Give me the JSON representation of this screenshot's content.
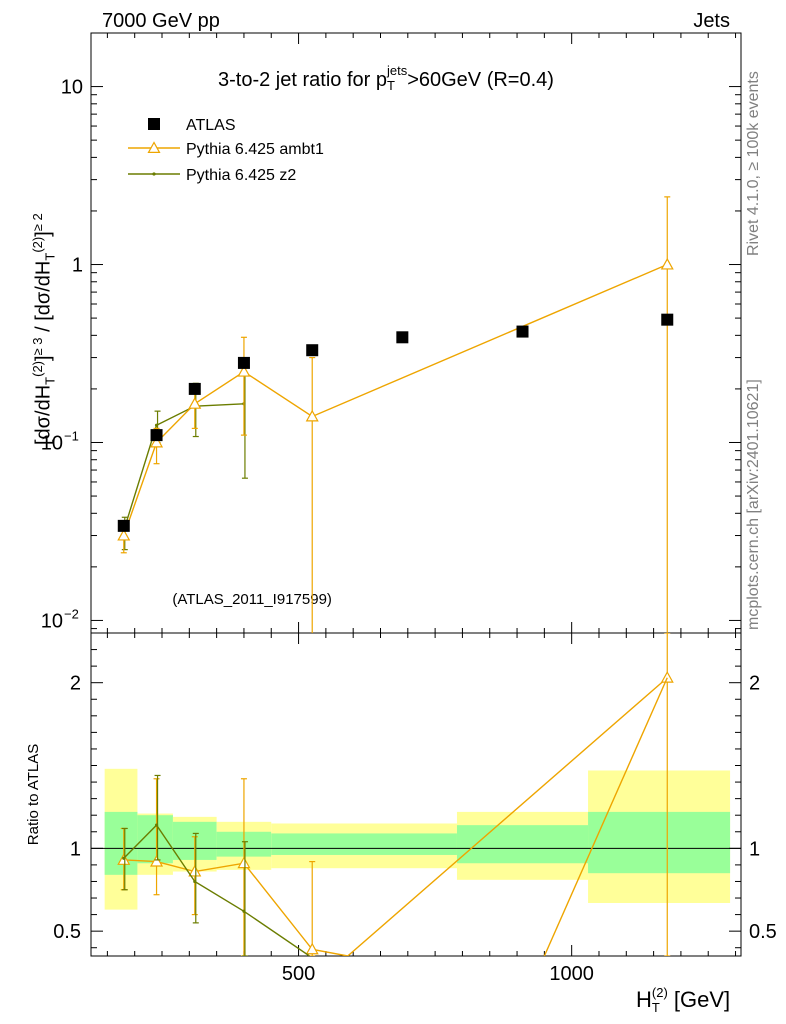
{
  "header": {
    "left": "7000 GeV pp",
    "right": "Jets"
  },
  "side_labels": {
    "rivet": "Rivet 4.1.0, ≥ 100k events",
    "mcplots": "mcplots.cern.ch [arXiv:2401.10621]"
  },
  "chart_data": [
    {
      "type": "scatter",
      "panel": "main",
      "title": {
        "text": "3-to-2 jet ratio for p",
        "sup": "jets",
        "sub": "T",
        "rest": ">60GeV (R=0.4)"
      },
      "ylabel": {
        "p1": "[dσ/dH",
        "s1sub": "T",
        "s1sup": "(2)",
        "e1": "]",
        "e1sup": "≥ 3",
        "p2": " / [dσ/dH",
        "s2sub": "T",
        "s2sup": "(2)",
        "e2": "]",
        "e2sup": "≥ 2"
      },
      "yscale": "log",
      "ylim": [
        0.0085,
        20
      ],
      "xlim": [
        120,
        1310
      ],
      "y_ticks": [
        {
          "value": 10,
          "label": "10"
        },
        {
          "value": 1,
          "label": "1"
        },
        {
          "value": 0.1,
          "label": "10",
          "sup": "−1"
        },
        {
          "value": 0.01,
          "label": "10",
          "sup": "−2"
        }
      ],
      "watermark": "(ATLAS_2011_I917599)",
      "legend_position": "top-left",
      "series": [
        {
          "name": "ATLAS",
          "marker": "square",
          "color": "#000000",
          "x": [
            180,
            240,
            310,
            400,
            525,
            690,
            910,
            1175
          ],
          "y": [
            0.034,
            0.11,
            0.2,
            0.28,
            0.33,
            0.39,
            0.42,
            0.49
          ]
        },
        {
          "name": "Pythia 6.425 ambt1",
          "marker": "triangle",
          "color": "#EEA500",
          "x": [
            180,
            240,
            310,
            400,
            525,
            1175
          ],
          "y": [
            0.03,
            0.1,
            0.165,
            0.25,
            0.14,
            1.0
          ],
          "err_low": [
            0.024,
            0.076,
            0.12,
            0.11,
            0.0001,
            0.0001
          ],
          "err_high": [
            0.036,
            0.12,
            0.21,
            0.39,
            0.3,
            2.4
          ]
        },
        {
          "name": "Pythia 6.425 z2",
          "marker": "dot",
          "color": "#6B7D00",
          "x": [
            180,
            240,
            310,
            400
          ],
          "y": [
            0.032,
            0.125,
            0.16,
            0.165
          ],
          "err_low": [
            0.025,
            0.1,
            0.108,
            0.063
          ],
          "err_high": [
            0.038,
            0.15,
            0.215,
            0.28
          ]
        }
      ]
    },
    {
      "type": "scatter",
      "panel": "ratio",
      "ylabel": "Ratio to ATLAS",
      "xlabel": {
        "main": "H",
        "sub": "T",
        "sup": "(2)",
        "rest": " [GeV]"
      },
      "ylim": [
        0.35,
        2.3
      ],
      "xlim": [
        120,
        1310
      ],
      "y_ticks": [
        {
          "value": 0.5,
          "label": "0.5"
        },
        {
          "value": 1,
          "label": "1"
        },
        {
          "value": 2,
          "label": "2"
        }
      ],
      "x_ticks": [
        {
          "value": 500,
          "label": "500"
        },
        {
          "value": 1000,
          "label": "1000"
        }
      ],
      "bands": [
        {
          "x0": 145,
          "x1": 205,
          "y_lo": 0.63,
          "y_hi": 1.48,
          "g_lo": 0.84,
          "g_hi": 1.22
        },
        {
          "x0": 205,
          "x1": 270,
          "y_lo": 0.84,
          "y_hi": 1.21,
          "g_lo": 0.91,
          "g_hi": 1.2
        },
        {
          "x0": 270,
          "x1": 350,
          "y_lo": 0.86,
          "y_hi": 1.19,
          "g_lo": 0.93,
          "g_hi": 1.16
        },
        {
          "x0": 350,
          "x1": 450,
          "y_lo": 0.87,
          "y_hi": 1.16,
          "g_lo": 0.95,
          "g_hi": 1.1
        },
        {
          "x0": 450,
          "x1": 790,
          "y_lo": 0.88,
          "y_hi": 1.15,
          "g_lo": 0.96,
          "g_hi": 1.09
        },
        {
          "x0": 790,
          "x1": 1030,
          "y_lo": 0.81,
          "y_hi": 1.22,
          "g_lo": 0.91,
          "g_hi": 1.14
        },
        {
          "x0": 1030,
          "x1": 1290,
          "y_lo": 0.67,
          "y_hi": 1.47,
          "g_lo": 0.85,
          "g_hi": 1.22
        }
      ],
      "series": [
        {
          "name": "Pythia 6.425 ambt1",
          "color": "#EEA500",
          "x": [
            180,
            240,
            310,
            400,
            525,
            590,
            1175
          ],
          "y": [
            0.93,
            0.92,
            0.86,
            0.91,
            0.39,
            0.35,
            2.03
          ],
          "marker": [
            true,
            true,
            true,
            true,
            true,
            false,
            true
          ],
          "err_low": [
            0.75,
            0.72,
            0.6,
            0.35,
            0.35,
            null,
            0.35
          ],
          "err_high": [
            1.12,
            1.42,
            1.07,
            1.42,
            0.92,
            null,
            2.3
          ]
        },
        {
          "name": "Pythia 6.425 ambt1",
          "color": "#EEA500",
          "x": [
            950,
            1175
          ],
          "y": [
            0.35,
            2.03
          ],
          "marker": [
            false,
            false
          ]
        },
        {
          "name": "Pythia 6.425 z2",
          "color": "#6B7D00",
          "x": [
            180,
            240,
            310,
            400,
            520
          ],
          "y": [
            0.94,
            1.14,
            0.8,
            0.62,
            0.35
          ],
          "marker": [
            true,
            true,
            true,
            true,
            false
          ],
          "err_low": [
            0.75,
            0.93,
            0.55,
            0.35,
            null
          ],
          "err_high": [
            1.12,
            1.44,
            1.09,
            1.04,
            null
          ]
        }
      ]
    }
  ]
}
